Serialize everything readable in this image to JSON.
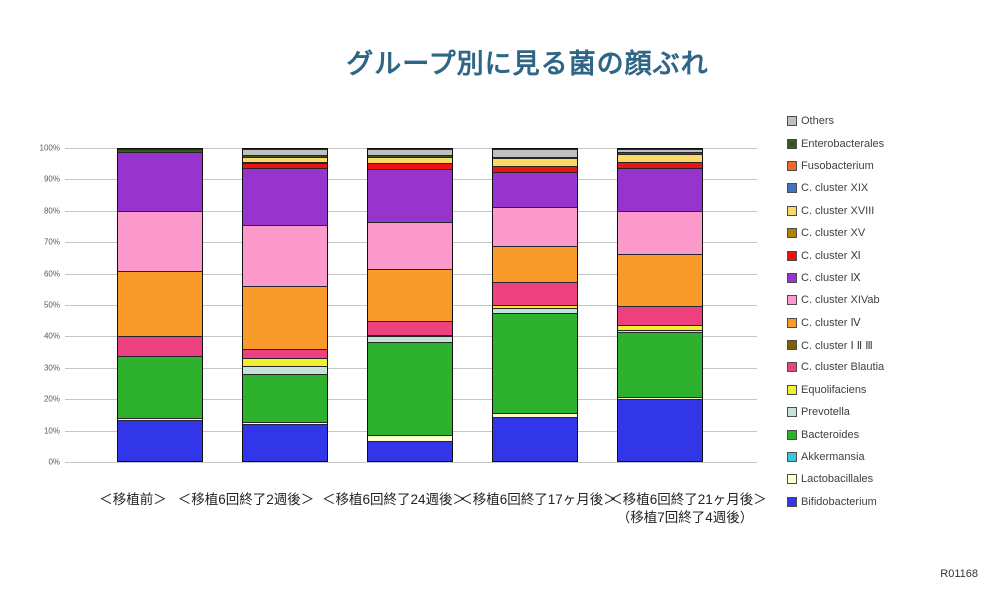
{
  "page": {
    "title": "グループ別に見る菌の顔ぶれ",
    "footnote": "R01168"
  },
  "chart_data": {
    "type": "bar",
    "subtype": "stacked-100-percent",
    "title": "グループ別に見る菌の顔ぶれ",
    "xlabel": "",
    "ylabel": "",
    "ylim": [
      0,
      100
    ],
    "grid": true,
    "legend_position": "right",
    "y_ticks": [
      "100%",
      "90%",
      "80%",
      "70%",
      "60%",
      "50%",
      "40%",
      "30%",
      "20%",
      "10%",
      "0%"
    ],
    "categories": [
      "＜移植前＞",
      "＜移植6回終了2週後＞",
      "＜移植6回終了24週後＞",
      "＜移植6回終了17ヶ月後＞",
      "＜移植6回終了21ヶ月後＞"
    ],
    "category_note": "（移植7回終了4週後）",
    "series_bottom_to_top": [
      {
        "name": "Bifidobacterium",
        "color": "#3136e8",
        "values": [
          13,
          12,
          6.5,
          14,
          20
        ]
      },
      {
        "name": "Lactobacillales",
        "color": "#ffffc8",
        "values": [
          0.7,
          0.5,
          2,
          1.3,
          0.6
        ]
      },
      {
        "name": "Akkermansia",
        "color": "#3fc7d7",
        "values": [
          0,
          0,
          0,
          0,
          0
        ]
      },
      {
        "name": "Bacteroides",
        "color": "#2eb22e",
        "values": [
          20,
          15.4,
          29.5,
          32,
          20.7
        ]
      },
      {
        "name": "Prevotella",
        "color": "#c6e3d8",
        "values": [
          0,
          2.5,
          2,
          1.7,
          0.8
        ]
      },
      {
        "name": "Equolifaciens",
        "color": "#f0ee30",
        "values": [
          0,
          2.6,
          0.5,
          1,
          1.5
        ]
      },
      {
        "name": "C. cluster Blautia",
        "color": "#ed4180",
        "values": [
          6.3,
          3,
          4.5,
          7.5,
          6.2
        ]
      },
      {
        "name": "C. cluster Ⅰ Ⅱ Ⅲ",
        "color": "#7f6000",
        "values": [
          0,
          0,
          0,
          0,
          0
        ]
      },
      {
        "name": "C. cluster Ⅳ",
        "color": "#f99b2b",
        "values": [
          21,
          20,
          16.5,
          11.5,
          16.5
        ]
      },
      {
        "name": "C. cluster XIVab",
        "color": "#fb99ca",
        "values": [
          19,
          19.8,
          15,
          12.5,
          14
        ]
      },
      {
        "name": "C. cluster Ⅸ",
        "color": "#9634cd",
        "values": [
          19,
          18.2,
          17,
          11,
          13.5
        ]
      },
      {
        "name": "C. cluster Ⅺ",
        "color": "#ee1111",
        "values": [
          0,
          1.5,
          2,
          2,
          2
        ]
      },
      {
        "name": "C. cluster XV",
        "color": "#a98600",
        "values": [
          0,
          0.5,
          0,
          0,
          0
        ]
      },
      {
        "name": "C. cluster XVIII",
        "color": "#fcd964",
        "values": [
          0,
          1.6,
          2,
          2.5,
          2.5
        ]
      },
      {
        "name": "C. cluster XIX",
        "color": "#4472c4",
        "values": [
          0,
          0,
          0,
          0,
          0
        ]
      },
      {
        "name": "Fusobacterium",
        "color": "#ed6a28",
        "values": [
          0,
          0,
          0,
          0,
          0
        ]
      },
      {
        "name": "Enterobacterales",
        "color": "#375623",
        "values": [
          1,
          0.4,
          0.75,
          0.3,
          0.7
        ]
      },
      {
        "name": "Others",
        "color": "#c0c0c0",
        "values": [
          0,
          2,
          1.75,
          2.7,
          1
        ]
      }
    ]
  }
}
